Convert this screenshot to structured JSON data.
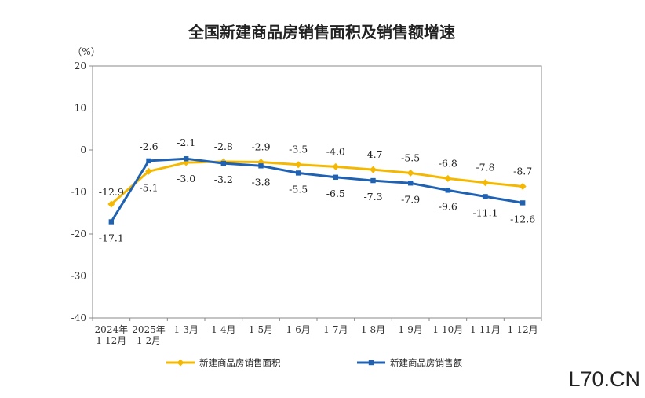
{
  "chart_data": {
    "type": "line",
    "title": "全国新建商品房销售面积及销售额增速",
    "ylabel": "（%）",
    "ylim": [
      -40,
      20
    ],
    "yticks": [
      20,
      10,
      0,
      -10,
      -20,
      -30,
      -40
    ],
    "categories": [
      [
        "2024年",
        "1-12月"
      ],
      [
        "2025年",
        "1-2月"
      ],
      [
        "1-3月"
      ],
      [
        "1-4月"
      ],
      [
        "1-5月"
      ],
      [
        "1-6月"
      ],
      [
        "1-7月"
      ],
      [
        "1-8月"
      ],
      [
        "1-9月"
      ],
      [
        "1-10月"
      ],
      [
        "1-11月"
      ],
      [
        "1-12月"
      ]
    ],
    "series": [
      {
        "name": "新建商品房销售面积",
        "color": "#f5b800",
        "marker": "diamond",
        "values": [
          -12.9,
          -5.1,
          -3.0,
          -2.8,
          -2.9,
          -3.5,
          -4.0,
          -4.7,
          -5.5,
          -6.8,
          -7.8,
          -8.7
        ],
        "labels": [
          "-12.9",
          "-5.1",
          "-3.0",
          "-2.8",
          "-2.9",
          "-3.5",
          "-4.0",
          "-4.7",
          "-5.5",
          "-6.8",
          "-7.8",
          "-8.7"
        ]
      },
      {
        "name": "新建商品房销售额",
        "color": "#1f62b3",
        "marker": "square",
        "values": [
          -17.1,
          -2.6,
          -2.1,
          -3.2,
          -3.8,
          -5.5,
          -6.5,
          -7.3,
          -7.9,
          -9.6,
          -11.1,
          -12.6
        ],
        "labels": [
          "-17.1",
          "-2.6",
          "-2.1",
          "-3.2",
          "-3.8",
          "-5.5",
          "-6.5",
          "-7.3",
          "-7.9",
          "-9.6",
          "-11.1",
          "-12.6"
        ]
      }
    ],
    "legend": "bottom"
  },
  "watermark": "L70.CN"
}
